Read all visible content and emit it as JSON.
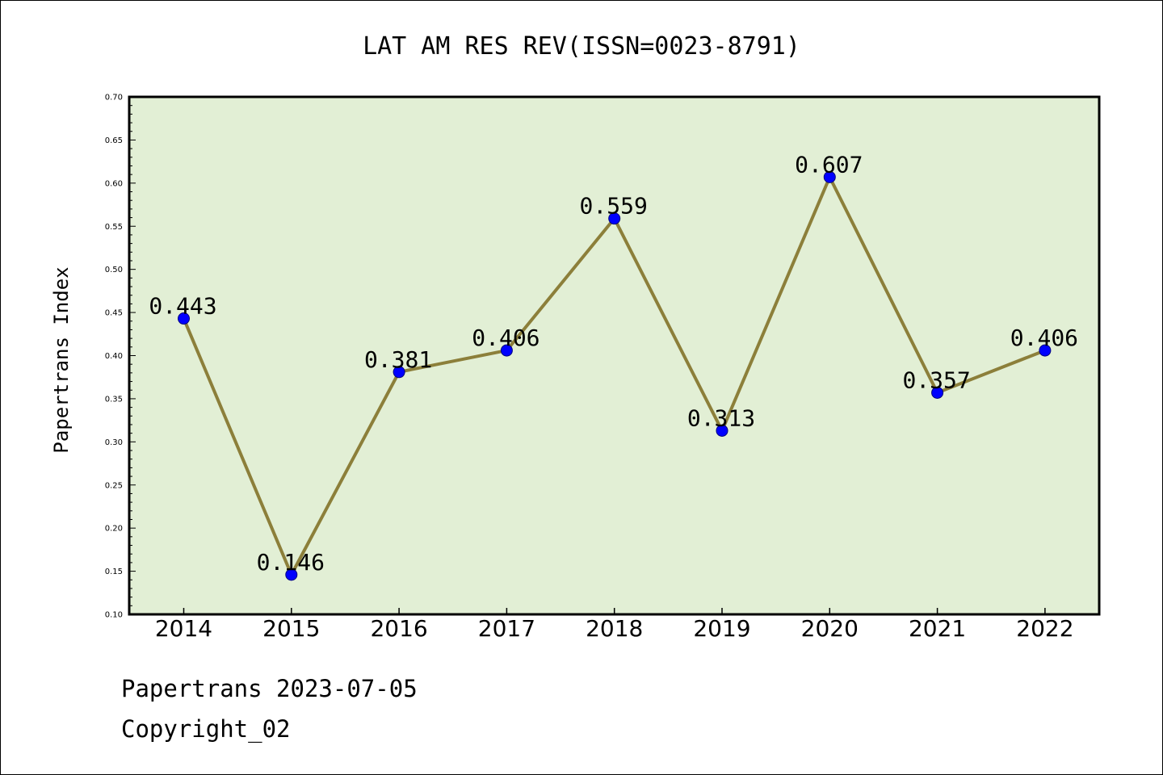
{
  "chart_data": {
    "type": "line",
    "title": "LAT AM RES REV(ISSN=0023-8791)",
    "xlabel": "",
    "ylabel": "Papertrans Index",
    "categories": [
      "2014",
      "2015",
      "2016",
      "2017",
      "2018",
      "2019",
      "2020",
      "2021",
      "2022"
    ],
    "series": [
      {
        "values": [
          0.443,
          0.146,
          0.381,
          0.406,
          0.559,
          0.313,
          0.607,
          0.357,
          0.406
        ],
        "labels": [
          "0.443",
          "0.146",
          "0.381",
          "0.406",
          "0.559",
          "0.313",
          "0.607",
          "0.357",
          "0.406"
        ]
      }
    ],
    "ylim": [
      0.1,
      0.7
    ],
    "yticks": [
      "0.10",
      "0.15",
      "0.20",
      "0.25",
      "0.30",
      "0.35",
      "0.40",
      "0.45",
      "0.50",
      "0.55",
      "0.60",
      "0.65",
      "0.70"
    ],
    "grid": false,
    "colors": {
      "plot_background": "#e2efd5",
      "line": "#8c7f3a",
      "marker": "#0000ff"
    }
  },
  "footer": {
    "line1": "Papertrans 2023-07-05",
    "line2": "Copyright_02"
  }
}
